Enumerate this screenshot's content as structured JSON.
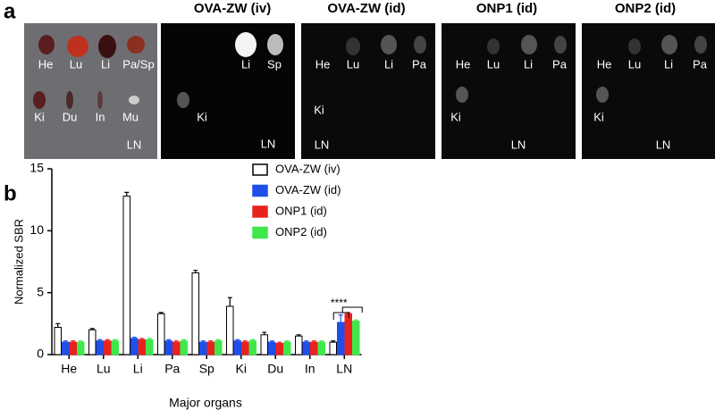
{
  "panel_a": {
    "label": "a",
    "titles": [
      "OVA-ZW (iv)",
      "OVA-ZW (id)",
      "ONP1 (id)",
      "ONP2 (id)"
    ],
    "image_labels": [
      [
        "He",
        "Lu",
        "Li",
        "Pa/Sp",
        "Ki",
        "Du",
        "In",
        "Mu",
        "LN"
      ],
      [
        "Li",
        "Sp",
        "Ki",
        "LN"
      ],
      [
        "He",
        "Lu",
        "Li",
        "Pa",
        "Ki",
        "LN"
      ],
      [
        "He",
        "Lu",
        "Li",
        "Pa",
        "Ki",
        "LN"
      ],
      [
        "He",
        "Lu",
        "Li",
        "Pa",
        "Ki",
        "LN"
      ]
    ]
  },
  "chart_data": {
    "type": "bar",
    "label": "b",
    "x_label": "Major organs",
    "y_label": "Normalized SBR",
    "categories": [
      "He",
      "Lu",
      "Li",
      "Pa",
      "Sp",
      "Ki",
      "Du",
      "In",
      "LN"
    ],
    "series": [
      {
        "name": "OVA-ZW (iv)",
        "color": "#ffffff",
        "values": [
          2.2,
          2.0,
          12.8,
          3.3,
          6.6,
          3.9,
          1.6,
          1.5,
          1.0
        ],
        "errors": [
          0.3,
          0.1,
          0.3,
          0.1,
          0.2,
          0.7,
          0.2,
          0.1,
          0.1
        ]
      },
      {
        "name": "OVA-ZW (id)",
        "color": "#1f4fe8",
        "values": [
          1.0,
          1.1,
          1.3,
          1.1,
          1.0,
          1.1,
          1.0,
          1.0,
          2.6
        ],
        "errors": [
          0.1,
          0.1,
          0.1,
          0.1,
          0.1,
          0.1,
          0.1,
          0.1,
          0.6
        ]
      },
      {
        "name": "ONP1 (id)",
        "color": "#e8231e",
        "values": [
          1.0,
          1.1,
          1.2,
          1.0,
          1.0,
          1.0,
          0.9,
          1.0,
          3.3
        ],
        "errors": [
          0.1,
          0.1,
          0.1,
          0.1,
          0.1,
          0.1,
          0.1,
          0.1,
          0.1
        ]
      },
      {
        "name": "ONP2 (id)",
        "color": "#3fe84a",
        "values": [
          1.0,
          1.1,
          1.2,
          1.1,
          1.1,
          1.1,
          1.0,
          1.0,
          2.7
        ],
        "errors": [
          0.1,
          0.1,
          0.1,
          0.1,
          0.1,
          0.1,
          0.1,
          0.1,
          0.1
        ]
      }
    ],
    "annotation": "****",
    "ylim": [
      0,
      15
    ],
    "yticks": [
      0,
      5,
      10,
      15
    ]
  }
}
